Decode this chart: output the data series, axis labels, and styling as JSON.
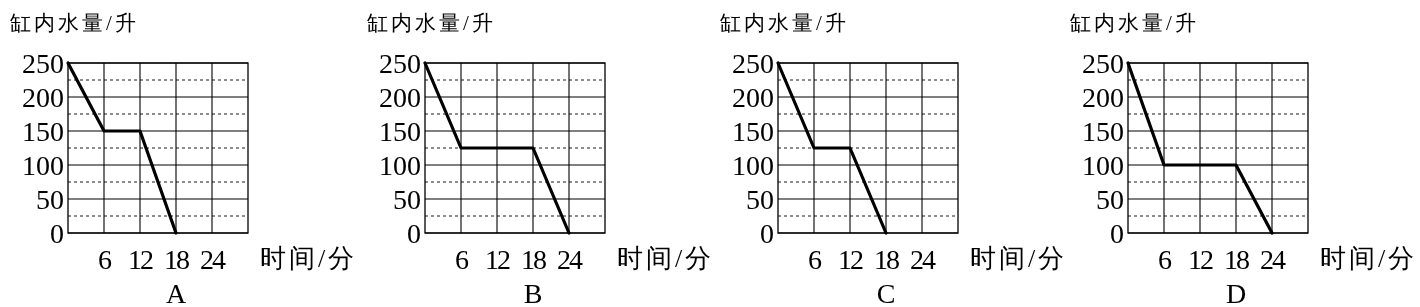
{
  "chart_data": [
    {
      "type": "line",
      "ylabel": "缸内水量/升",
      "xlabel": "时间/分",
      "annotations": [
        "A"
      ],
      "x": [
        0,
        6,
        12,
        18
      ],
      "series": [
        {
          "color": "#000000",
          "values": [
            250,
            150,
            150,
            0
          ]
        }
      ],
      "xlim": [
        0,
        30
      ],
      "ylim": [
        0,
        250
      ],
      "xticks": [
        6,
        12,
        18,
        24
      ],
      "yticks": [
        0,
        {
          "value": 25,
          "label": null
        },
        50,
        {
          "value": 75,
          "label": null
        },
        100,
        {
          "value": 125,
          "label": null
        },
        150,
        {
          "value": 175,
          "label": null
        },
        200,
        {
          "value": 225,
          "label": null
        },
        250
      ],
      "grid": true,
      "marker": "none"
    },
    {
      "type": "line",
      "ylabel": "缸内水量/升",
      "xlabel": "时间/分",
      "annotations": [
        "B"
      ],
      "x": [
        0,
        6,
        18,
        24
      ],
      "series": [
        {
          "color": "#000000",
          "values": [
            250,
            125,
            125,
            0
          ]
        }
      ],
      "xlim": [
        0,
        30
      ],
      "ylim": [
        0,
        250
      ],
      "xticks": [
        6,
        12,
        18,
        24
      ],
      "yticks": [
        0,
        {
          "value": 25,
          "label": null
        },
        50,
        {
          "value": 75,
          "label": null
        },
        100,
        {
          "value": 125,
          "label": null
        },
        150,
        {
          "value": 175,
          "label": null
        },
        200,
        {
          "value": 225,
          "label": null
        },
        250
      ],
      "grid": true,
      "marker": "none"
    },
    {
      "type": "line",
      "ylabel": "缸内水量/升",
      "xlabel": "时间/分",
      "annotations": [
        "C"
      ],
      "x": [
        0,
        6,
        12,
        18
      ],
      "series": [
        {
          "color": "#000000",
          "values": [
            250,
            125,
            125,
            0
          ]
        }
      ],
      "xlim": [
        0,
        30
      ],
      "ylim": [
        0,
        250
      ],
      "xticks": [
        6,
        12,
        18,
        24
      ],
      "yticks": [
        0,
        {
          "value": 25,
          "label": null
        },
        50,
        {
          "value": 75,
          "label": null
        },
        100,
        {
          "value": 125,
          "label": null
        },
        150,
        {
          "value": 175,
          "label": null
        },
        200,
        {
          "value": 225,
          "label": null
        },
        250
      ],
      "grid": true,
      "marker": "none"
    },
    {
      "type": "line",
      "ylabel": "缸内水量/升",
      "xlabel": "时间/分",
      "annotations": [
        "D"
      ],
      "x": [
        0,
        6,
        18,
        24
      ],
      "series": [
        {
          "color": "#000000",
          "values": [
            250,
            100,
            100,
            0
          ]
        }
      ],
      "xlim": [
        0,
        30
      ],
      "ylim": [
        0,
        250
      ],
      "xticks": [
        6,
        12,
        18,
        24
      ],
      "yticks": [
        0,
        {
          "value": 25,
          "label": null
        },
        50,
        {
          "value": 75,
          "label": null
        },
        100,
        {
          "value": 125,
          "label": null
        },
        150,
        {
          "value": 175,
          "label": null
        },
        200,
        {
          "value": 225,
          "label": null
        },
        250
      ],
      "grid": true,
      "marker": "none"
    }
  ]
}
